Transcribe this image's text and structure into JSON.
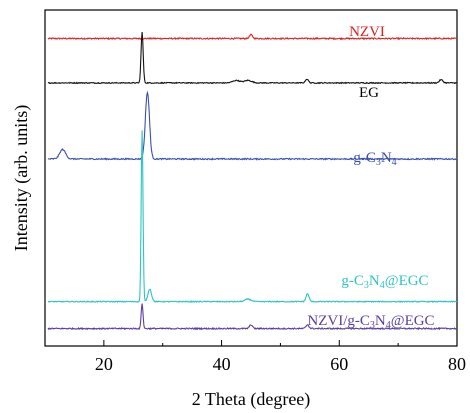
{
  "chart_data": {
    "type": "line",
    "xlabel": "2 Theta (degree)",
    "ylabel": "Intensity (arb. units)",
    "xlim": [
      10,
      80
    ],
    "x_ticks": [
      "20",
      "40",
      "60",
      "80"
    ],
    "y_ticks_shown": false,
    "grid": false,
    "legend": "none (series labeled inline, right side)",
    "series": [
      {
        "name": "NZVI",
        "label_parts": [
          "NZVI"
        ],
        "color": "#e02020",
        "baseline": 9.3,
        "peaks": [
          [
            45.0,
            0.12,
            0.5
          ]
        ],
        "noise": 0.02
      },
      {
        "name": "EG",
        "label_parts": [
          "EG"
        ],
        "color": "#111111",
        "baseline": 7.9,
        "peaks": [
          [
            26.5,
            1.6,
            0.35
          ],
          [
            42.5,
            0.08,
            1.2
          ],
          [
            44.5,
            0.08,
            1.2
          ],
          [
            54.5,
            0.12,
            0.5
          ],
          [
            77.3,
            0.1,
            0.6
          ]
        ],
        "noise": 0.015
      },
      {
        "name": "g-C3N4",
        "label_parts": [
          "g-C",
          "3",
          "N",
          "4"
        ],
        "color": "#3a4fb0",
        "baseline": 5.5,
        "peaks": [
          [
            13.0,
            0.3,
            1.0
          ],
          [
            27.4,
            2.1,
            0.7
          ]
        ],
        "noise": 0.02
      },
      {
        "name": "g-C3N4@EGC",
        "label_parts": [
          "g-C",
          "3",
          "N",
          "4",
          "@EGC"
        ],
        "color": "#2ec4c4",
        "baseline": 1.0,
        "peaks": [
          [
            26.5,
            5.4,
            0.3
          ],
          [
            27.8,
            0.4,
            0.6
          ],
          [
            44.5,
            0.08,
            1.0
          ],
          [
            54.6,
            0.25,
            0.5
          ]
        ],
        "noise": 0.015
      },
      {
        "name": "NZVI/g-C3N4@EGC",
        "label_parts": [
          "NZVI/g-C",
          "3",
          "N",
          "4",
          "@EGC"
        ],
        "color": "#5b3fa0",
        "baseline": 0.15,
        "peaks": [
          [
            26.5,
            0.8,
            0.3
          ],
          [
            45.0,
            0.12,
            0.5
          ],
          [
            54.6,
            0.12,
            0.5
          ]
        ],
        "noise": 0.02
      }
    ],
    "y_range": [
      -0.4,
      10.2
    ]
  }
}
